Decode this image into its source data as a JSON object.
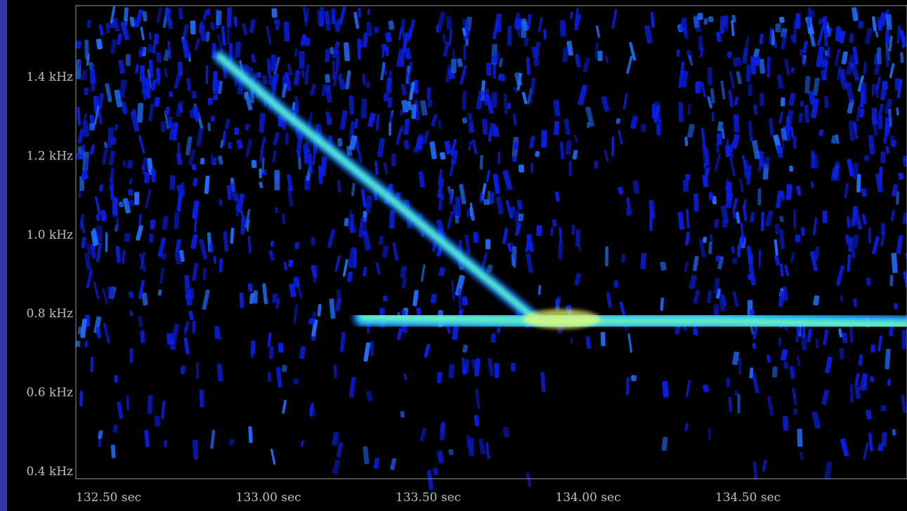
{
  "chart_data": {
    "type": "heatmap",
    "title": "",
    "xlabel": "",
    "ylabel": "",
    "x_ticks": [
      {
        "value": 132.5,
        "label": "132.50 sec"
      },
      {
        "value": 133.0,
        "label": "133.00 sec"
      },
      {
        "value": 133.5,
        "label": "133.50 sec"
      },
      {
        "value": 134.0,
        "label": "134.00 sec"
      },
      {
        "value": 134.5,
        "label": "134.50 sec"
      }
    ],
    "y_ticks": [
      {
        "value": 0.4,
        "label": "0.4 kHz"
      },
      {
        "value": 0.6,
        "label": "0.6 kHz"
      },
      {
        "value": 0.8,
        "label": "0.8 kHz"
      },
      {
        "value": 1.0,
        "label": "1.0 kHz"
      },
      {
        "value": 1.2,
        "label": "1.2 kHz"
      },
      {
        "value": 1.4,
        "label": "1.4 kHz"
      }
    ],
    "xlim": [
      132.5,
      135.1
    ],
    "ylim": [
      0.38,
      1.58
    ],
    "grid": false,
    "colormap": [
      "#000000",
      "#0a1ee6",
      "#1e6eff",
      "#2fd0ff",
      "#7cffb0",
      "#f4ff70"
    ],
    "series": [
      {
        "points": [
          [
            132.95,
            1.45
          ],
          [
            133.15,
            1.31
          ],
          [
            133.5,
            1.08
          ],
          [
            133.75,
            0.91
          ],
          [
            133.93,
            0.79
          ]
        ]
      },
      {
        "points": [
          [
            133.4,
            0.79
          ],
          [
            134.0,
            0.78
          ],
          [
            134.5,
            0.78
          ],
          [
            135.1,
            0.77
          ]
        ]
      }
    ]
  }
}
